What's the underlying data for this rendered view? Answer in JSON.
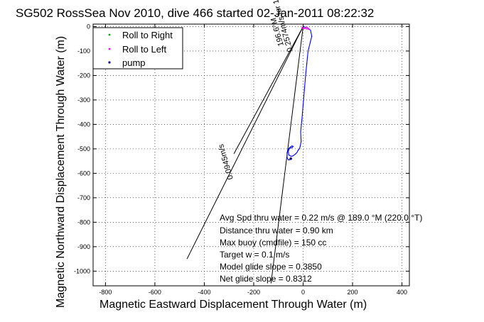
{
  "chart_data": {
    "type": "line",
    "title": "SG502 RossSea Nov 2010, dive 466 started 02-Jan-2011 08:22:32",
    "xlabel": "Magnetic Eastward Displacement Through Water (m)",
    "ylabel": "Magnetic Northward Displacement Through Water (m)",
    "xlim": [
      -850,
      430
    ],
    "ylim": [
      -1060,
      10
    ],
    "xticks": [
      -800,
      -600,
      -400,
      -200,
      0,
      200,
      400
    ],
    "yticks": [
      0,
      -100,
      -200,
      -300,
      -400,
      -500,
      -600,
      -700,
      -800,
      -900,
      -1000
    ],
    "grid": true,
    "legend_position": "top-left",
    "legend": [
      {
        "label": "Roll to Right",
        "color": "#00aa00",
        "marker": "dot"
      },
      {
        "label": "Roll to Left",
        "color": "#ff00ff",
        "marker": "dot"
      },
      {
        "label": "pump",
        "color": "#000080",
        "marker": "dot"
      }
    ],
    "series": [
      {
        "color": "#0000ff",
        "x": [
          0,
          18,
          30,
          35,
          30,
          20,
          15,
          10,
          5,
          0,
          -5,
          -10,
          -8,
          -12,
          -15,
          -20,
          -25,
          -30,
          -40,
          -45,
          -50,
          -58,
          -60,
          -55,
          -45,
          -40,
          -45,
          -60,
          -65,
          -65,
          -60,
          -55,
          -50
        ],
        "y": [
          0,
          -5,
          -15,
          -40,
          -60,
          -100,
          -150,
          -200,
          -260,
          -320,
          -380,
          -430,
          -470,
          -490,
          -500,
          -505,
          -515,
          -520,
          -528,
          -530,
          -530,
          -525,
          -510,
          -495,
          -488,
          -490,
          -495,
          -500,
          -515,
          -535,
          -545,
          -545,
          -540
        ]
      },
      {
        "color": "#ff00ff",
        "x": [
          -5,
          -2,
          2,
          6,
          10,
          15,
          20,
          25,
          15,
          0,
          -5
        ],
        "y": [
          -4,
          -8,
          -10,
          -7,
          -4,
          -2,
          -6,
          -12,
          -10,
          -6,
          -4
        ]
      }
    ],
    "reference_lines": [
      {
        "x": [
          0,
          -470
        ],
        "y": [
          0,
          -950
        ]
      },
      {
        "x": [
          0,
          -130
        ],
        "y": [
          0,
          -1050
        ]
      },
      {
        "x": [
          0,
          -280
        ],
        "y": [
          0,
          -520
        ]
      }
    ],
    "annotations": [
      "Avg Spd thru water =  0.22 m/s @ 189.0   °M (220.0 °T)",
      "Distance thru water =  0.90 km",
      "Max buoy (cmdfile) = 150 cc",
      "Target w = 0.1 m/s",
      "Model glide slope = 0.3850",
      "Net glide slope = 0.8312"
    ],
    "rotated_labels": [
      "0.2574m/s for 1.1293hr = 1.0466km",
      "196.6°M",
      "0.0945m/s"
    ]
  }
}
